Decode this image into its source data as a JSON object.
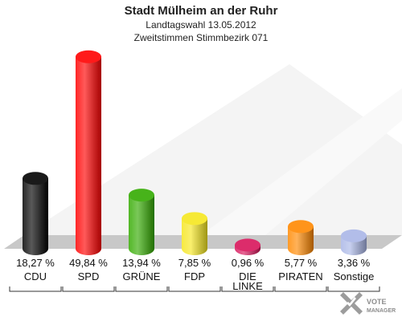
{
  "header": {
    "title": "Stadt Mülheim an der Ruhr",
    "subtitle1": "Landtagswahl 13.05.2012",
    "subtitle2": "Zweitstimmen Stimmbezirk 071"
  },
  "logo": {
    "line1": "VOTE",
    "line2": "MANAGER"
  },
  "chart_data": {
    "type": "bar",
    "title": "Stadt Mülheim an der Ruhr",
    "subtitle": "Landtagswahl 13.05.2012 Zweitstimmen Stimmbezirk 071",
    "categories": [
      "CDU",
      "SPD",
      "GRÜNE",
      "FDP",
      "DIE LINKE",
      "PIRATEN",
      "Sonstige"
    ],
    "category_lines": [
      [
        "CDU"
      ],
      [
        "SPD"
      ],
      [
        "GRÜNE"
      ],
      [
        "FDP"
      ],
      [
        "DIE",
        "LINKE"
      ],
      [
        "PIRATEN"
      ],
      [
        "Sonstige"
      ]
    ],
    "values": [
      18.27,
      49.84,
      13.94,
      7.85,
      0.96,
      5.77,
      3.36
    ],
    "value_labels": [
      "18,27 %",
      "49,84 %",
      "13,94 %",
      "7,85 %",
      "0,96 %",
      "5,77 %",
      "3,36 %"
    ],
    "colors": [
      "#000000",
      "#ff0000",
      "#33aa00",
      "#f5e61e",
      "#d8145a",
      "#ff8800",
      "#a9b6e6"
    ],
    "ylim": [
      0,
      50
    ],
    "grid": false,
    "legend": false
  }
}
